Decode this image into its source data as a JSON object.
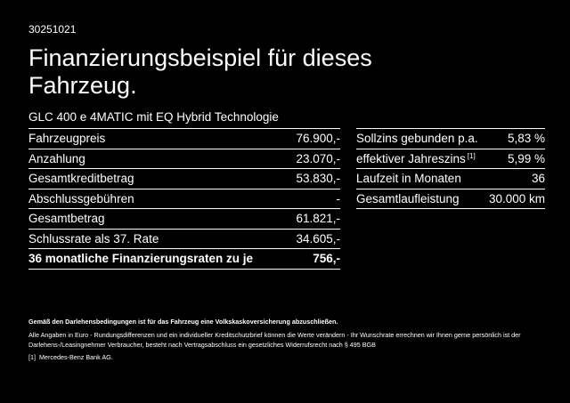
{
  "code": "30251021",
  "title": "Finanzierungsbeispiel für dieses Fahrzeug.",
  "model": "GLC 400 e 4MATIC mit EQ Hybrid Technologie",
  "left_table": {
    "rows": [
      [
        "Fahrzeugpreis",
        "76.900,-"
      ],
      [
        "Anzahlung",
        "23.070,-"
      ],
      [
        "Gesamtkreditbetrag",
        "53.830,-"
      ],
      [
        "Abschlussgebühren",
        "-"
      ],
      [
        "Gesamtbetrag",
        "61.821,-"
      ],
      [
        "Schlussrate als 37. Rate",
        "34.605,-"
      ],
      [
        "36 monatliche Finanzierungsraten zu je",
        "756,-"
      ]
    ]
  },
  "right_table": {
    "rows": [
      {
        "label": "Sollzins gebunden p.a.",
        "value": "5,83 %"
      },
      {
        "label": "effektiver Jahreszins",
        "note": "[1]",
        "value": "5,99 %"
      },
      {
        "label": "Laufzeit in Monaten",
        "value": "36"
      },
      {
        "label": "Gesamtlaufleistung",
        "value": "30.000 km"
      }
    ]
  },
  "notes": {
    "bold": "Gemäß den Darlehensbedingungen ist für das Fahrzeug eine Volkskaskoversicherung abzuschließen.",
    "text": "Alle Angaben in Euro - Rundungsdifferenzen und ein individueller Kreditschutzbrief können die Werte verändern - Ihr Wunschrate errechnen wir Ihnen gerne persönlich ist der Darlehens-/Leasingnehmer Verbraucher, besteht nach Vertragsabschluss ein gesetzliches Widerrufsrecht nach § 495 BGB",
    "footnote_marker": "[1]",
    "footnote_text": "Mercedes-Benz Bank AG."
  }
}
